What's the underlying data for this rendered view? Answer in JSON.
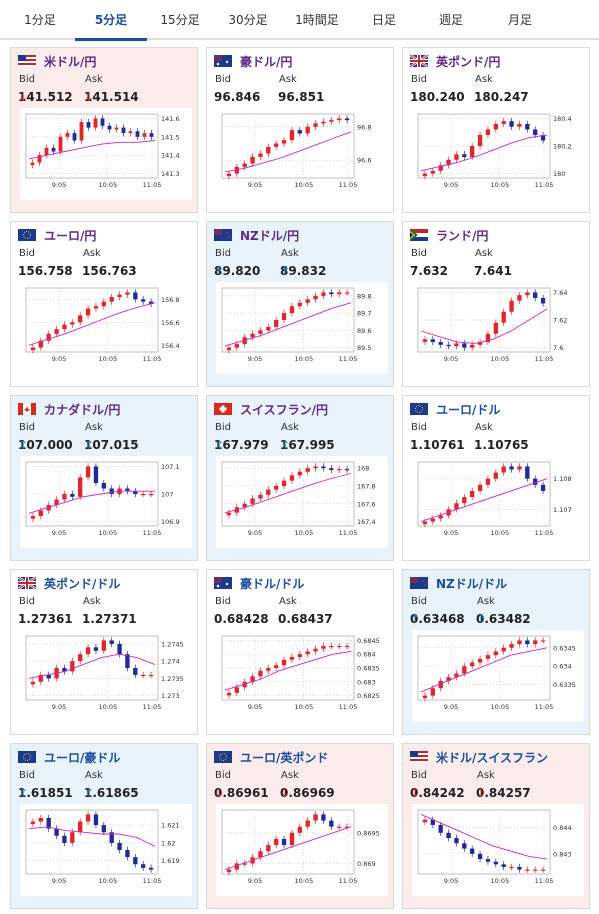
{
  "tabs": [
    "1分足",
    "5分足",
    "15分足",
    "30分足",
    "1時間足",
    "日足",
    "週足",
    "月足"
  ],
  "active_tab": 1,
  "labels": {
    "bid": "Bid",
    "ask": "Ask"
  },
  "colors": {
    "accent": "#1a4ea0",
    "down": "#d9262c",
    "up": "#1a76b8",
    "ma": "#c429c8",
    "card_down": "#fcecec",
    "card_up": "#e8f3fb"
  },
  "cards": [
    {
      "pair": "米ドル/円",
      "flag": "us",
      "bid": "141.512",
      "ask": "141.514",
      "dir": "down",
      "bg": "down",
      "chart": {
        "ticks": [
          "141.6",
          "141.5",
          "141.4",
          "141.3"
        ],
        "x": [
          "9:05",
          "10:05",
          "11:05"
        ],
        "closes": [
          141.36,
          141.4,
          141.44,
          141.42,
          141.5,
          141.52,
          141.48,
          141.58,
          141.55,
          141.6,
          141.56,
          141.54,
          141.55,
          141.52,
          141.53,
          141.5,
          141.52,
          141.5
        ],
        "ma": [
          141.38,
          141.4,
          141.42,
          141.44,
          141.46,
          141.47,
          141.47,
          141.48
        ]
      }
    },
    {
      "pair": "豪ドル/円",
      "flag": "au",
      "bid": "96.846",
      "ask": "96.851",
      "dir": "none",
      "bg": "none",
      "chart": {
        "ticks": [
          "96.8",
          "96.6"
        ],
        "x": [
          "9:05",
          "10:05",
          "11:05"
        ],
        "closes": [
          96.52,
          96.56,
          96.58,
          96.62,
          96.64,
          96.68,
          96.7,
          96.72,
          96.78,
          96.76,
          96.8,
          96.82,
          96.83,
          96.84,
          96.85,
          96.84
        ],
        "ma": [
          96.53,
          96.55,
          96.58,
          96.61,
          96.65,
          96.69,
          96.73,
          96.77
        ]
      }
    },
    {
      "pair": "英ポンド/円",
      "flag": "gb",
      "bid": "180.240",
      "ask": "180.247",
      "dir": "none",
      "bg": "none",
      "chart": {
        "ticks": [
          "180.4",
          "180.2",
          "180"
        ],
        "x": [
          "9:05",
          "10:05",
          "11:05"
        ],
        "closes": [
          180.0,
          180.02,
          180.06,
          180.1,
          180.14,
          180.12,
          180.2,
          180.28,
          180.32,
          180.36,
          180.38,
          180.34,
          180.36,
          180.32,
          180.28,
          180.24
        ],
        "ma": [
          180.02,
          180.05,
          180.08,
          180.12,
          180.17,
          180.22,
          180.26,
          180.28
        ]
      }
    },
    {
      "pair": "ユーロ/円",
      "flag": "eu",
      "bid": "156.758",
      "ask": "156.763",
      "dir": "none",
      "bg": "none",
      "chart": {
        "ticks": [
          "156.8",
          "156.6",
          "156.4"
        ],
        "x": [
          "9:05",
          "10:05",
          "11:05"
        ],
        "closes": [
          156.38,
          156.44,
          156.5,
          156.54,
          156.58,
          156.6,
          156.66,
          156.72,
          156.74,
          156.78,
          156.82,
          156.84,
          156.86,
          156.8,
          156.78,
          156.76
        ],
        "ma": [
          156.4,
          156.45,
          156.5,
          156.56,
          156.62,
          156.68,
          156.73,
          156.77
        ]
      }
    },
    {
      "pair": "NZドル/円",
      "flag": "nz",
      "bid": "89.820",
      "ask": "89.832",
      "dir": "up",
      "bg": "up",
      "chart": {
        "ticks": [
          "89.8",
          "89.7",
          "89.6",
          "89.5"
        ],
        "x": [
          "9:05",
          "10:05",
          "11:05"
        ],
        "closes": [
          89.5,
          89.52,
          89.56,
          89.58,
          89.6,
          89.62,
          89.66,
          89.7,
          89.74,
          89.76,
          89.78,
          89.8,
          89.82,
          89.81,
          89.82,
          89.82
        ],
        "ma": [
          89.51,
          89.54,
          89.57,
          89.61,
          89.65,
          89.69,
          89.73,
          89.76
        ]
      }
    },
    {
      "pair": "ランド/円",
      "flag": "za",
      "bid": "7.632",
      "ask": "7.641",
      "dir": "none",
      "bg": "none",
      "chart": {
        "ticks": [
          "7.64",
          "7.62",
          "7.6"
        ],
        "x": [
          "9:05",
          "10:05",
          "11:05"
        ],
        "closes": [
          7.606,
          7.604,
          7.602,
          7.601,
          7.603,
          7.6,
          7.602,
          7.604,
          7.61,
          7.618,
          7.626,
          7.634,
          7.638,
          7.64,
          7.636,
          7.632
        ],
        "ma": [
          7.612,
          7.608,
          7.604,
          7.603,
          7.606,
          7.612,
          7.62,
          7.628
        ]
      }
    },
    {
      "pair": "カナダドル/円",
      "flag": "ca",
      "bid": "107.000",
      "ask": "107.015",
      "dir": "up",
      "bg": "up",
      "chart": {
        "ticks": [
          "107.1",
          "107",
          "106.9"
        ],
        "x": [
          "9:05",
          "10:05",
          "11:05"
        ],
        "closes": [
          106.92,
          106.94,
          106.96,
          106.98,
          107.0,
          106.99,
          107.06,
          107.1,
          107.04,
          107.02,
          107.0,
          107.02,
          107.01,
          107.0,
          107.0,
          107.0
        ],
        "ma": [
          106.93,
          106.95,
          106.97,
          106.99,
          107.0,
          107.01,
          107.01,
          107.01
        ]
      }
    },
    {
      "pair": "スイスフラン/円",
      "flag": "ch",
      "bid": "167.979",
      "ask": "167.995",
      "dir": "up",
      "bg": "up",
      "chart": {
        "ticks": [
          "168",
          "167.8",
          "167.6",
          "167.4"
        ],
        "x": [
          "9:05",
          "10:05",
          "11:05"
        ],
        "closes": [
          167.5,
          167.56,
          167.6,
          167.66,
          167.7,
          167.76,
          167.8,
          167.86,
          167.92,
          167.96,
          168.0,
          168.02,
          168.0,
          167.98,
          167.99,
          167.98
        ],
        "ma": [
          167.5,
          167.55,
          167.62,
          167.69,
          167.76,
          167.83,
          167.89,
          167.94
        ]
      }
    },
    {
      "pair": "ユーロ/ドル",
      "flag": "eu",
      "bid": "1.10761",
      "ask": "1.10765",
      "dir": "none",
      "bg": "none",
      "chart": {
        "ticks": [
          "1.108",
          "1.107"
        ],
        "x": [
          "9:05",
          "10:05",
          "11:05"
        ],
        "closes": [
          1.1066,
          1.1067,
          1.1068,
          1.107,
          1.1072,
          1.1074,
          1.1076,
          1.1078,
          1.108,
          1.1082,
          1.1084,
          1.1083,
          1.1084,
          1.108,
          1.1078,
          1.1076
        ],
        "ma": [
          1.1066,
          1.1068,
          1.107,
          1.1072,
          1.1074,
          1.1076,
          1.1078,
          1.108
        ]
      }
    },
    {
      "pair": "英ポンド/ドル",
      "flag": "gb",
      "bid": "1.27361",
      "ask": "1.27371",
      "dir": "none",
      "bg": "none",
      "chart": {
        "ticks": [
          "1.2745",
          "1.274",
          "1.2735",
          "1.273"
        ],
        "x": [
          "9:05",
          "10:05",
          "11:05"
        ],
        "closes": [
          1.2734,
          1.2736,
          1.2735,
          1.2738,
          1.2737,
          1.274,
          1.2742,
          1.2744,
          1.2743,
          1.2746,
          1.2745,
          1.2742,
          1.2738,
          1.2736,
          1.2736,
          1.2736
        ],
        "ma": [
          1.2735,
          1.2736,
          1.2737,
          1.2739,
          1.2741,
          1.2742,
          1.2741,
          1.2739
        ]
      }
    },
    {
      "pair": "豪ドル/ドル",
      "flag": "au",
      "bid": "0.68428",
      "ask": "0.68437",
      "dir": "none",
      "bg": "none",
      "chart": {
        "ticks": [
          "0.6845",
          "0.684",
          "0.6835",
          "0.683",
          "0.6825"
        ],
        "x": [
          "9:05",
          "10:05",
          "11:05"
        ],
        "closes": [
          0.6826,
          0.6828,
          0.683,
          0.6832,
          0.6834,
          0.6835,
          0.6836,
          0.6838,
          0.6839,
          0.684,
          0.6841,
          0.6842,
          0.6843,
          0.6843,
          0.6843,
          0.6843
        ],
        "ma": [
          0.6827,
          0.6829,
          0.6831,
          0.6834,
          0.6836,
          0.6838,
          0.684,
          0.6841
        ]
      }
    },
    {
      "pair": "NZドル/ドル",
      "flag": "nz",
      "bid": "0.63468",
      "ask": "0.63482",
      "dir": "up",
      "bg": "up",
      "chart": {
        "ticks": [
          "0.6345",
          "0.634",
          "0.6335"
        ],
        "x": [
          "9:05",
          "10:05",
          "11:05"
        ],
        "closes": [
          0.6332,
          0.6334,
          0.6336,
          0.6337,
          0.6338,
          0.634,
          0.6341,
          0.6342,
          0.6343,
          0.6344,
          0.6345,
          0.6346,
          0.6347,
          0.6346,
          0.6347,
          0.6347
        ],
        "ma": [
          0.6333,
          0.6335,
          0.6337,
          0.6339,
          0.6341,
          0.6343,
          0.6344,
          0.6345
        ]
      }
    },
    {
      "pair": "ユーロ/豪ドル",
      "flag": "eu",
      "bid": "1.61851",
      "ask": "1.61865",
      "dir": "up",
      "bg": "up",
      "chart": {
        "ticks": [
          "1.621",
          "1.62",
          "1.619"
        ],
        "x": [
          "9:05",
          "10:05",
          "11:05"
        ],
        "closes": [
          1.6212,
          1.6214,
          1.6208,
          1.6204,
          1.62,
          1.6206,
          1.6212,
          1.6216,
          1.621,
          1.6206,
          1.62,
          1.6196,
          1.6192,
          1.6188,
          1.6186,
          1.6185
        ],
        "ma": [
          1.6208,
          1.6209,
          1.6207,
          1.6206,
          1.6205,
          1.6205,
          1.6203,
          1.6198
        ]
      }
    },
    {
      "pair": "ユーロ/英ポンド",
      "flag": "eu",
      "bid": "0.86961",
      "ask": "0.86969",
      "dir": "down",
      "bg": "down",
      "chart": {
        "ticks": [
          "0.8695",
          "0.869"
        ],
        "x": [
          "9:05",
          "10:05",
          "11:05"
        ],
        "closes": [
          0.8689,
          0.869,
          0.869,
          0.8691,
          0.8692,
          0.8693,
          0.8694,
          0.8693,
          0.8695,
          0.8696,
          0.8697,
          0.8698,
          0.8697,
          0.8696,
          0.8696,
          0.8696
        ],
        "ma": [
          0.8689,
          0.869,
          0.8691,
          0.8692,
          0.8693,
          0.8694,
          0.8695,
          0.8696
        ]
      }
    },
    {
      "pair": "米ドル/スイスフラン",
      "flag": "us",
      "bid": "0.84242",
      "ask": "0.84257",
      "dir": "down",
      "bg": "down",
      "chart": {
        "ticks": [
          "0.844",
          "0.843"
        ],
        "x": [
          "9:05",
          "10:05",
          "11:05"
        ],
        "closes": [
          0.8443,
          0.8441,
          0.8438,
          0.8436,
          0.8434,
          0.8432,
          0.843,
          0.8428,
          0.8427,
          0.8426,
          0.8425,
          0.8425,
          0.8424,
          0.8424,
          0.8424,
          0.8424
        ],
        "ma": [
          0.8445,
          0.8442,
          0.8439,
          0.8436,
          0.8433,
          0.8431,
          0.8429,
          0.8428
        ]
      }
    }
  ]
}
